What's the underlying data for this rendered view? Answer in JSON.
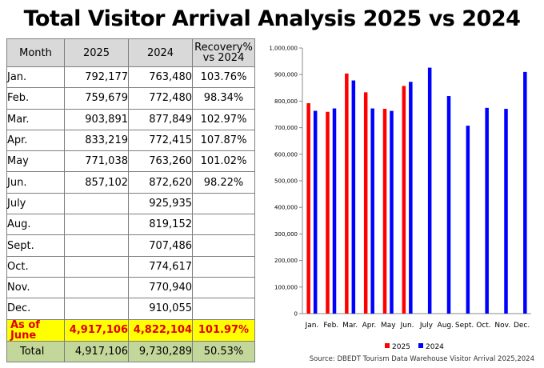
{
  "title": "Total Visitor Arrival Analysis 2025 vs 2024",
  "table": {
    "headers": {
      "month": "Month",
      "y2025": "2025",
      "y2024": "2024",
      "recovery_line1": "Recovery%",
      "recovery_line2": "vs 2024"
    },
    "rows": [
      {
        "month": "Jan.",
        "y2025": "792,177",
        "y2024": "763,480",
        "recovery": "103.76%"
      },
      {
        "month": "Feb.",
        "y2025": "759,679",
        "y2024": "772,480",
        "recovery": "98.34%"
      },
      {
        "month": "Mar.",
        "y2025": "903,891",
        "y2024": "877,849",
        "recovery": "102.97%"
      },
      {
        "month": "Apr.",
        "y2025": "833,219",
        "y2024": "772,415",
        "recovery": "107.87%"
      },
      {
        "month": "May",
        "y2025": "771,038",
        "y2024": "763,260",
        "recovery": "101.02%"
      },
      {
        "month": "Jun.",
        "y2025": "857,102",
        "y2024": "872,620",
        "recovery": "98.22%"
      },
      {
        "month": "July",
        "y2025": "",
        "y2024": "925,935",
        "recovery": ""
      },
      {
        "month": "Aug.",
        "y2025": "",
        "y2024": "819,152",
        "recovery": ""
      },
      {
        "month": "Sept.",
        "y2025": "",
        "y2024": "707,486",
        "recovery": ""
      },
      {
        "month": "Oct.",
        "y2025": "",
        "y2024": "774,617",
        "recovery": ""
      },
      {
        "month": "Nov.",
        "y2025": "",
        "y2024": "770,940",
        "recovery": ""
      },
      {
        "month": "Dec.",
        "y2025": "",
        "y2024": "910,055",
        "recovery": ""
      }
    ],
    "as_of": {
      "month": "As of June",
      "y2025": "4,917,106",
      "y2024": "4,822,104",
      "recovery": "101.97%"
    },
    "total": {
      "month": "Total",
      "y2025": "4,917,106",
      "y2024": "9,730,289",
      "recovery": "50.53%"
    }
  },
  "chart_data": {
    "type": "bar",
    "categories": [
      "Jan.",
      "Feb.",
      "Mar.",
      "Apr.",
      "May",
      "Jun.",
      "July",
      "Aug.",
      "Sept.",
      "Oct.",
      "Nov.",
      "Dec."
    ],
    "series": [
      {
        "name": "2025",
        "color": "#ff0000",
        "values": [
          792177,
          759679,
          903891,
          833219,
          771038,
          857102,
          null,
          null,
          null,
          null,
          null,
          null
        ]
      },
      {
        "name": "2024",
        "color": "#0000ff",
        "values": [
          763480,
          772480,
          877849,
          772415,
          763260,
          872620,
          925935,
          819152,
          707486,
          774617,
          770940,
          910055
        ]
      }
    ],
    "ylim": [
      0,
      1000000
    ],
    "yticks": [
      "0",
      "100,000",
      "200,000",
      "300,000",
      "400,000",
      "500,000",
      "600,000",
      "700,000",
      "800,000",
      "900,000",
      "1,000,000"
    ],
    "grid": false,
    "legend": "bottom"
  },
  "source": "Source: DBEDT Tourism Data Warehouse Visitor Arrival 2025,2024"
}
